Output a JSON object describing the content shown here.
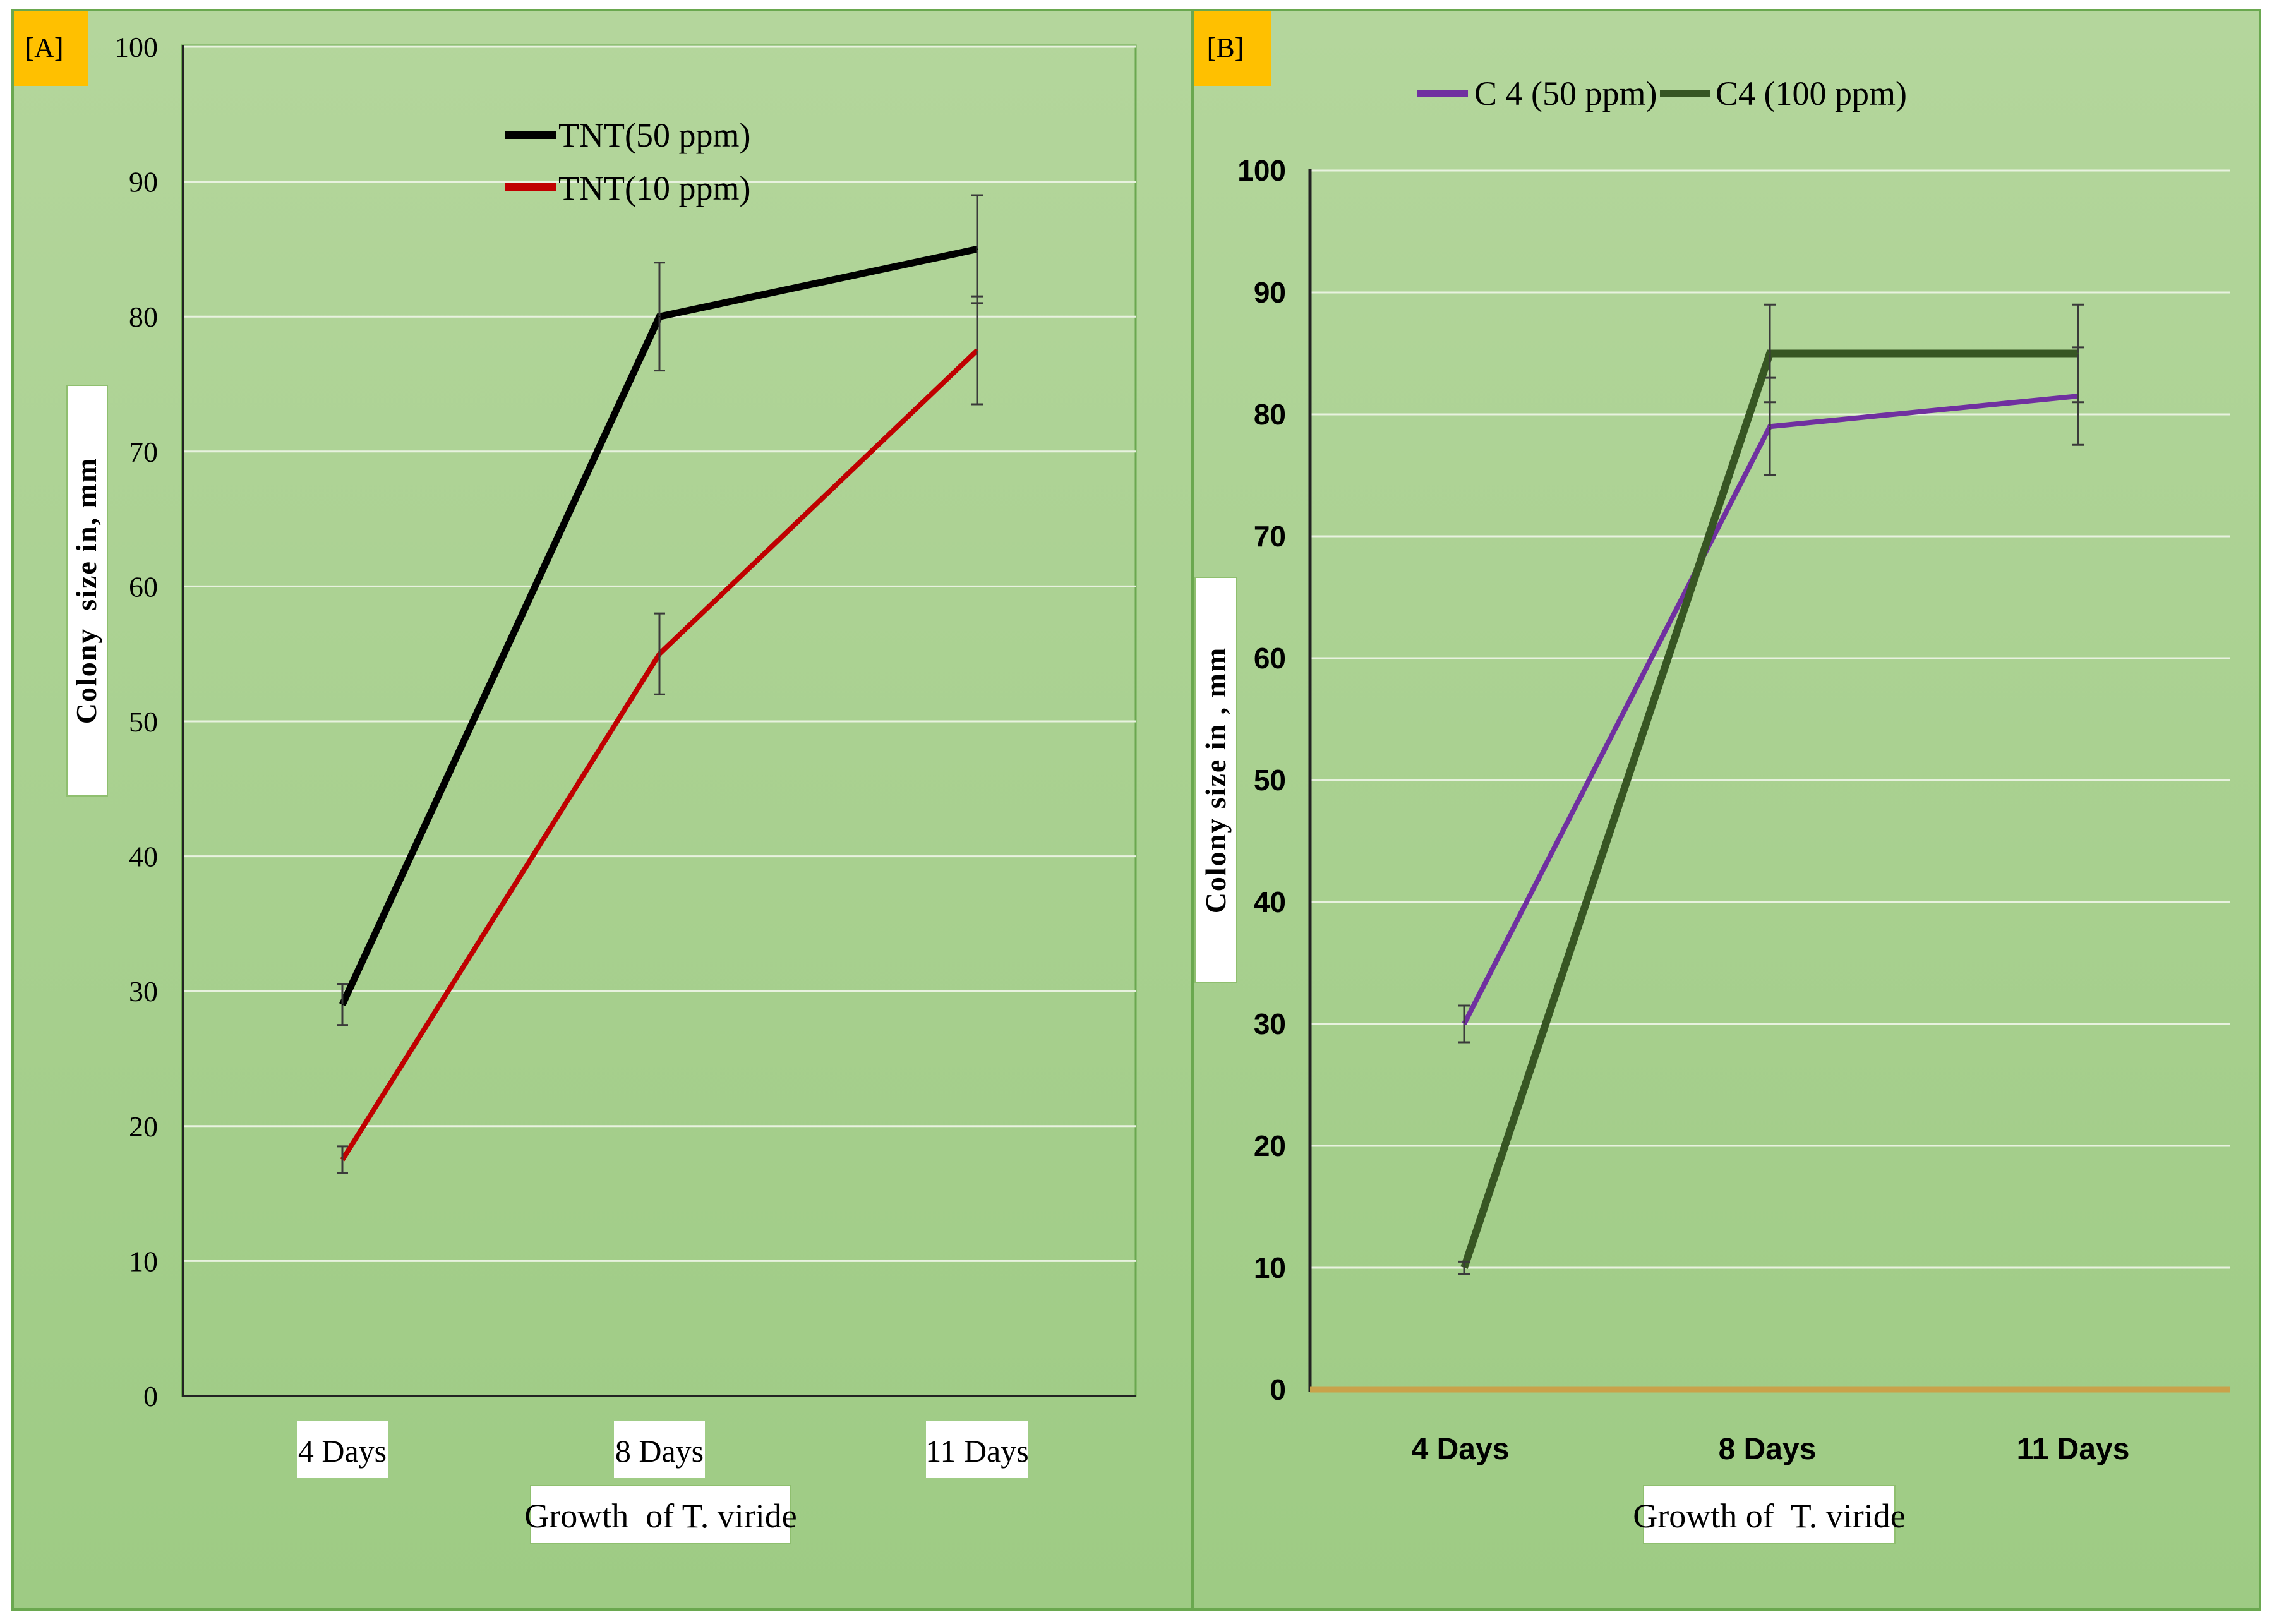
{
  "chart_data": [
    {
      "panel": "[A]",
      "type": "line",
      "categories": [
        "4 Days",
        "8 Days",
        "11 Days"
      ],
      "ylim": [
        0,
        100
      ],
      "yticks": [
        0,
        10,
        20,
        30,
        40,
        50,
        60,
        70,
        80,
        90,
        100
      ],
      "grid": true,
      "xlabel": "Growth  of T. viride",
      "ylabel": "Colony  size in, mm",
      "legend_position": "top-center",
      "series": [
        {
          "name": "TNT(50 ppm)",
          "color": "#000000",
          "values": [
            29,
            80,
            85
          ],
          "errors": [
            1.5,
            4,
            4
          ]
        },
        {
          "name": "TNT(10 ppm)",
          "color": "#c00000",
          "values": [
            17.5,
            55,
            77.5
          ],
          "errors": [
            1,
            3,
            4
          ]
        }
      ]
    },
    {
      "panel": "[B]",
      "type": "line",
      "categories": [
        "4 Days",
        "8 Days",
        "11 Days"
      ],
      "ylim": [
        0,
        100
      ],
      "yticks": [
        0,
        10,
        20,
        30,
        40,
        50,
        60,
        70,
        80,
        90,
        100
      ],
      "grid": true,
      "xlabel": "Growth of  T. viride",
      "ylabel": "Colony size in , mm",
      "legend_position": "top",
      "series": [
        {
          "name": "C 4 (50 ppm)",
          "color": "#7030a0",
          "values": [
            30,
            79,
            81.5
          ],
          "errors": [
            1.5,
            4,
            4
          ]
        },
        {
          "name": "C4 (100 ppm)",
          "color": "#375623",
          "values": [
            10,
            85,
            85
          ],
          "errors": [
            0.5,
            4,
            4
          ]
        }
      ]
    }
  ],
  "colors": {
    "background": "#a9d08e",
    "panel_tag_bg": "#ffc000",
    "baseline_b": "#c9a24a"
  }
}
